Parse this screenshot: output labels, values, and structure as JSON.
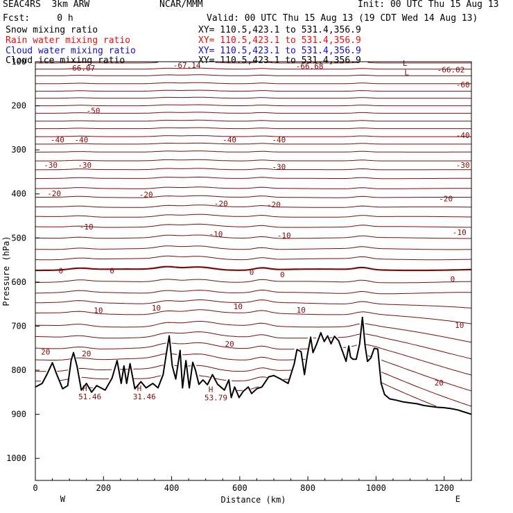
{
  "header": {
    "left_line1": "SEAC4RS  3km ARW",
    "left_line2": "Fcst:     0 h",
    "center": "NCAR/MMM",
    "init": "Init: 00 UTC Thu 15 Aug 13",
    "valid": "Valid: 00 UTC Thu 15 Aug 13 (19 CDT Wed 14 Aug 13)"
  },
  "fields": [
    {
      "name": "Snow mixing ratio",
      "xy": "XY= 110.5,423.1 to 531.4,356.9",
      "color": "#000000"
    },
    {
      "name": "Rain water mixing ratio",
      "xy": "XY= 110.5,423.1 to 531.4,356.9",
      "color": "#e01010"
    },
    {
      "name": "Cloud water mixing ratio",
      "xy": "XY= 110.5,423.1 to 531.4,356.9",
      "color": "#1010c0"
    },
    {
      "name": "Cloud ice mixing ratio",
      "xy": "XY= 110.5,423.1 to 531.4,356.9",
      "color": "#000000"
    }
  ],
  "chart_data": {
    "type": "line",
    "title": "",
    "xlabel": "Distance (km)",
    "ylabel": "Pressure (hPa)",
    "xlim": [
      0,
      1280
    ],
    "ylim": [
      100,
      1050
    ],
    "y_inverted": true,
    "x_ticks": [
      0,
      200,
      400,
      600,
      800,
      1000,
      1200
    ],
    "y_ticks": [
      100,
      200,
      300,
      400,
      500,
      600,
      700,
      800,
      900,
      1000
    ],
    "x_ends": {
      "left": "W",
      "right": "E"
    },
    "contour_color": "#7b0a0a",
    "terrain_color": "#000000",
    "contour_levels": [
      -60,
      -50,
      -40,
      -30,
      -20,
      -10,
      0,
      10,
      20
    ],
    "contour_labels": [
      {
        "text": "-66.07",
        "x": 135,
        "p": 114
      },
      {
        "text": "-67.14",
        "x": 445,
        "p": 108
      },
      {
        "text": "-66.68",
        "x": 805,
        "p": 110
      },
      {
        "text": "-66.02",
        "x": 1220,
        "p": 118
      },
      {
        "text": "-60",
        "x": 1255,
        "p": 152
      },
      {
        "text": "-50",
        "x": 170,
        "p": 211
      },
      {
        "text": "-40",
        "x": 65,
        "p": 277
      },
      {
        "text": "-40",
        "x": 135,
        "p": 277
      },
      {
        "text": "-40",
        "x": 570,
        "p": 277
      },
      {
        "text": "-40",
        "x": 715,
        "p": 277
      },
      {
        "text": "-40",
        "x": 1255,
        "p": 267
      },
      {
        "text": "-30",
        "x": 45,
        "p": 334
      },
      {
        "text": "-30",
        "x": 145,
        "p": 334
      },
      {
        "text": "-30",
        "x": 715,
        "p": 338
      },
      {
        "text": "-30",
        "x": 1255,
        "p": 334
      },
      {
        "text": "-20",
        "x": 55,
        "p": 399
      },
      {
        "text": "-20",
        "x": 325,
        "p": 401
      },
      {
        "text": "-20",
        "x": 545,
        "p": 422
      },
      {
        "text": "-20",
        "x": 700,
        "p": 424
      },
      {
        "text": "-20",
        "x": 1205,
        "p": 411
      },
      {
        "text": "-10",
        "x": 150,
        "p": 474
      },
      {
        "text": "-10",
        "x": 530,
        "p": 491
      },
      {
        "text": "-10",
        "x": 730,
        "p": 494
      },
      {
        "text": "-10",
        "x": 1245,
        "p": 487
      },
      {
        "text": "0",
        "x": 75,
        "p": 574
      },
      {
        "text": "0",
        "x": 225,
        "p": 574
      },
      {
        "text": "0",
        "x": 635,
        "p": 577
      },
      {
        "text": "0",
        "x": 725,
        "p": 583
      },
      {
        "text": "0",
        "x": 1225,
        "p": 593
      },
      {
        "text": "10",
        "x": 185,
        "p": 664
      },
      {
        "text": "10",
        "x": 355,
        "p": 658
      },
      {
        "text": "10",
        "x": 595,
        "p": 655
      },
      {
        "text": "10",
        "x": 780,
        "p": 663
      },
      {
        "text": "10",
        "x": 1245,
        "p": 698
      },
      {
        "text": "20",
        "x": 30,
        "p": 758
      },
      {
        "text": "20",
        "x": 150,
        "p": 762
      },
      {
        "text": "20",
        "x": 570,
        "p": 740
      },
      {
        "text": "20",
        "x": 1185,
        "p": 828
      }
    ],
    "extrema": [
      {
        "label": "L",
        "x": 1085,
        "p": 103
      },
      {
        "label": "L",
        "x": 1090,
        "p": 124
      },
      {
        "label": "H",
        "x": 145,
        "p": 841
      },
      {
        "label": "H",
        "x": 305,
        "p": 841
      },
      {
        "label": "H",
        "x": 515,
        "p": 843
      }
    ],
    "extrema_values": [
      {
        "text": "51.46",
        "x": 160,
        "p": 860
      },
      {
        "text": "31.46",
        "x": 320,
        "p": 860
      },
      {
        "text": "53.79",
        "x": 530,
        "p": 862
      }
    ],
    "terrain": [
      [
        0,
        838
      ],
      [
        20,
        830
      ],
      [
        35,
        808
      ],
      [
        50,
        783
      ],
      [
        62,
        808
      ],
      [
        80,
        842
      ],
      [
        95,
        835
      ],
      [
        105,
        778
      ],
      [
        112,
        760
      ],
      [
        122,
        790
      ],
      [
        135,
        845
      ],
      [
        150,
        830
      ],
      [
        165,
        850
      ],
      [
        180,
        835
      ],
      [
        205,
        845
      ],
      [
        225,
        818
      ],
      [
        240,
        778
      ],
      [
        252,
        830
      ],
      [
        260,
        790
      ],
      [
        268,
        830
      ],
      [
        278,
        785
      ],
      [
        292,
        842
      ],
      [
        310,
        826
      ],
      [
        325,
        840
      ],
      [
        345,
        830
      ],
      [
        360,
        840
      ],
      [
        375,
        810
      ],
      [
        385,
        760
      ],
      [
        393,
        722
      ],
      [
        402,
        790
      ],
      [
        412,
        820
      ],
      [
        425,
        755
      ],
      [
        432,
        840
      ],
      [
        442,
        778
      ],
      [
        452,
        840
      ],
      [
        462,
        782
      ],
      [
        470,
        800
      ],
      [
        480,
        832
      ],
      [
        492,
        822
      ],
      [
        505,
        833
      ],
      [
        520,
        810
      ],
      [
        535,
        832
      ],
      [
        555,
        845
      ],
      [
        568,
        822
      ],
      [
        575,
        862
      ],
      [
        585,
        838
      ],
      [
        598,
        862
      ],
      [
        610,
        848
      ],
      [
        625,
        838
      ],
      [
        635,
        853
      ],
      [
        650,
        842
      ],
      [
        665,
        838
      ],
      [
        685,
        815
      ],
      [
        700,
        812
      ],
      [
        720,
        820
      ],
      [
        742,
        830
      ],
      [
        760,
        785
      ],
      [
        768,
        753
      ],
      [
        780,
        758
      ],
      [
        790,
        810
      ],
      [
        798,
        768
      ],
      [
        808,
        725
      ],
      [
        815,
        760
      ],
      [
        825,
        742
      ],
      [
        838,
        715
      ],
      [
        848,
        735
      ],
      [
        858,
        722
      ],
      [
        868,
        740
      ],
      [
        878,
        723
      ],
      [
        890,
        733
      ],
      [
        903,
        760
      ],
      [
        912,
        780
      ],
      [
        920,
        745
      ],
      [
        925,
        770
      ],
      [
        932,
        775
      ],
      [
        942,
        775
      ],
      [
        952,
        740
      ],
      [
        960,
        680
      ],
      [
        968,
        745
      ],
      [
        975,
        780
      ],
      [
        985,
        772
      ],
      [
        995,
        750
      ],
      [
        1005,
        752
      ],
      [
        1015,
        830
      ],
      [
        1025,
        855
      ],
      [
        1040,
        865
      ],
      [
        1060,
        868
      ],
      [
        1080,
        872
      ],
      [
        1100,
        874
      ],
      [
        1120,
        876
      ],
      [
        1140,
        880
      ],
      [
        1160,
        882
      ],
      [
        1180,
        884
      ],
      [
        1200,
        885
      ],
      [
        1220,
        887
      ],
      [
        1240,
        890
      ],
      [
        1260,
        895
      ],
      [
        1280,
        900
      ]
    ]
  }
}
